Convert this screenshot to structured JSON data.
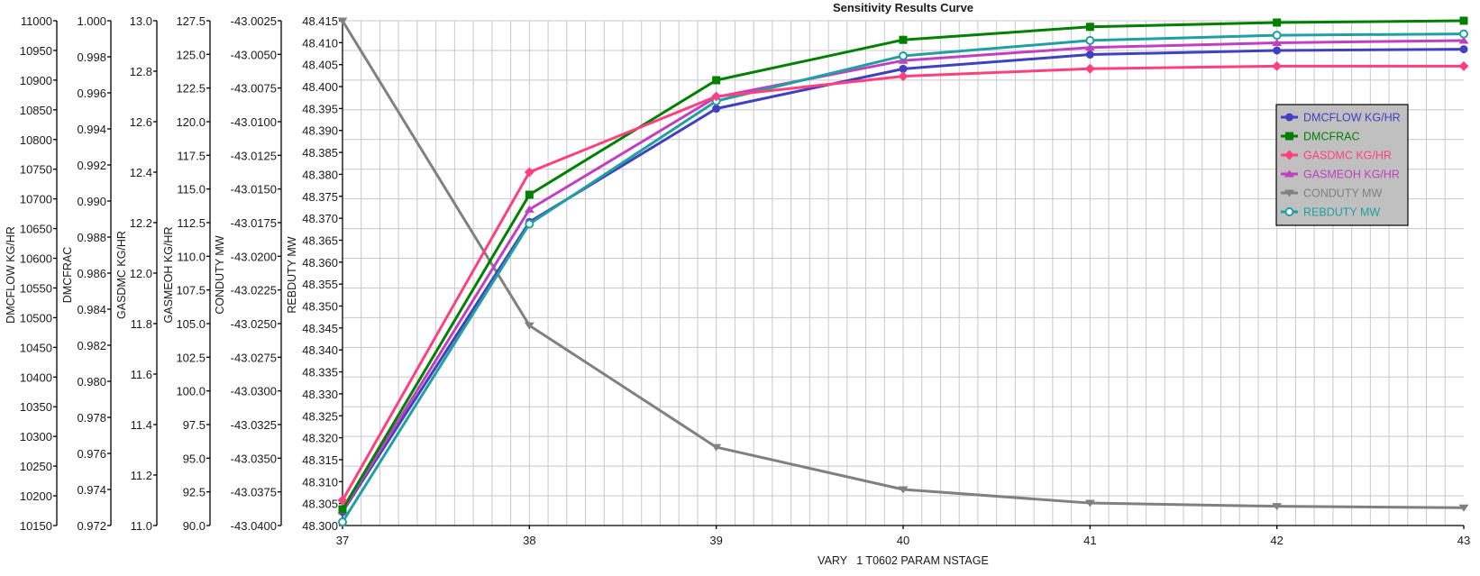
{
  "chart_data": {
    "type": "line",
    "title": "Sensitivity Results Curve",
    "xlabel": "VARY   1 T0602 PARAM NSTAGE",
    "x": [
      37,
      38,
      39,
      40,
      41,
      42,
      43
    ],
    "xlim": [
      37,
      43
    ],
    "x_ticks": [
      "37",
      "38",
      "39",
      "40",
      "41",
      "42",
      "43"
    ],
    "grid": true,
    "legend_position": "right",
    "series": [
      {
        "name": "DMCFLOW KG/HR",
        "color": "#4040c0",
        "marker": "circle",
        "axis": "DMCFLOW KG/HR",
        "values": [
          10173,
          10661,
          10852,
          10919,
          10943,
          10950,
          10952
        ]
      },
      {
        "name": "DMCFRAC",
        "color": "#008000",
        "marker": "square",
        "axis": "DMCFRAC",
        "values": [
          0.9729,
          0.99035,
          0.9967,
          0.99894,
          0.99966,
          0.9999,
          1.0
        ]
      },
      {
        "name": "GASDMC KG/HR",
        "color": "#ff4080",
        "marker": "diamond",
        "axis": "GASDMC KG/HR",
        "values": [
          11.1,
          12.4,
          12.7,
          12.78,
          12.81,
          12.82,
          12.82
        ]
      },
      {
        "name": "GASMEOH KG/HR",
        "color": "#c040c0",
        "marker": "triangle-up",
        "axis": "GASMEOH KG/HR",
        "values": [
          91.09,
          113.48,
          121.83,
          124.54,
          125.51,
          125.86,
          126.03
        ]
      },
      {
        "name": "CONDUTY MW",
        "color": "#808080",
        "marker": "triangle-down",
        "axis": "CONDUTY MW",
        "values": [
          -43.0025,
          -43.02514,
          -43.03418,
          -43.03732,
          -43.03833,
          -43.03857,
          -43.03868
        ]
      },
      {
        "name": "REBDUTY MW",
        "color": "#20a0a0",
        "marker": "open-circle",
        "axis": "REBDUTY MW",
        "values": [
          48.3008,
          48.3687,
          48.3967,
          48.407,
          48.4105,
          48.4117,
          48.412
        ]
      }
    ],
    "y_axes": [
      {
        "label": "DMCFLOW KG/HR",
        "min": 10150,
        "max": 11000,
        "step": 50,
        "decimals": 0
      },
      {
        "label": "DMCFRAC",
        "min": 0.972,
        "max": 1.0,
        "step": 0.002,
        "decimals": 3
      },
      {
        "label": "GASDMC KG/HR",
        "min": 11.0,
        "max": 13.0,
        "step": 0.2,
        "decimals": 1
      },
      {
        "label": "GASMEOH KG/HR",
        "min": 90.0,
        "max": 127.5,
        "step": 2.5,
        "decimals": 1
      },
      {
        "label": "CONDUTY MW",
        "min": -43.04,
        "max": -43.0025,
        "step": 0.0025,
        "decimals": 4
      },
      {
        "label": "REBDUTY MW",
        "min": 48.3,
        "max": 48.415,
        "step": 0.005,
        "decimals": 3
      }
    ]
  }
}
